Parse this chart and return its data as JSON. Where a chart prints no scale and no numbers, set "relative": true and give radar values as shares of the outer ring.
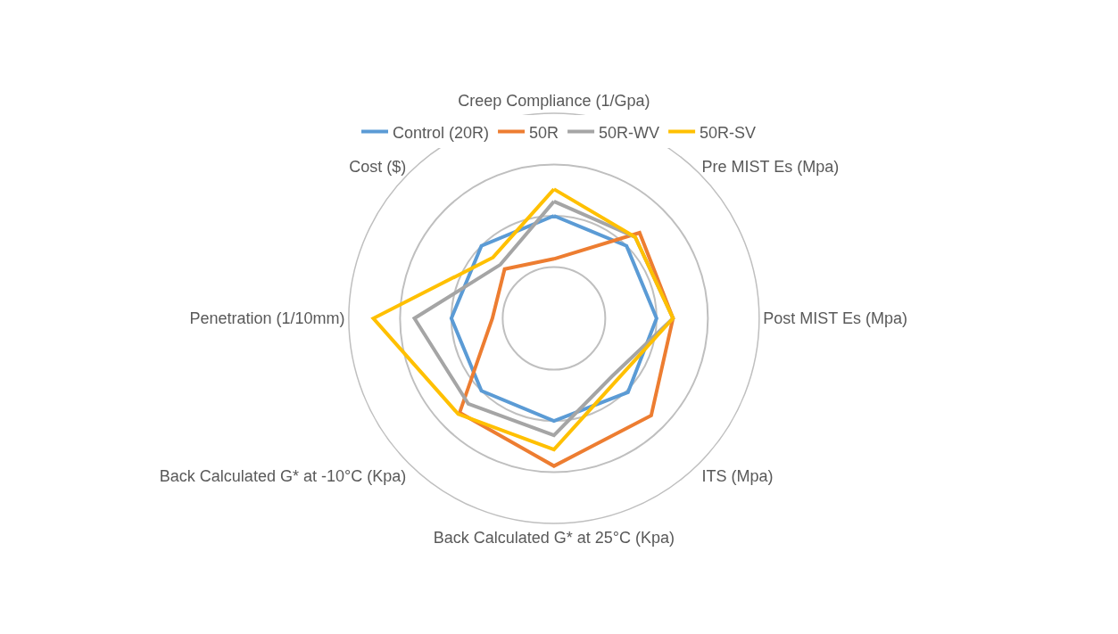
{
  "chart_data": {
    "type": "radar",
    "relative": true,
    "grid": true,
    "legend": "top",
    "marker": "none",
    "line_style": "solid",
    "categories": [
      "Creep Compliance (1/Gpa)",
      "Pre MIST Es (Mpa)",
      "Post MIST Es (Mpa)",
      "ITS (Mpa)",
      "Back Calculated G* at 25°C (Kpa)",
      "Back Calculated G* at -10°C (Kpa)",
      "Penetration (1/10mm)",
      "Cost ($)"
    ],
    "series": [
      {
        "name": "Control (20R)",
        "color": "#5b9bd5",
        "values": [
          0.5,
          0.5,
          0.5,
          0.51,
          0.5,
          0.5,
          0.5,
          0.5
        ]
      },
      {
        "name": "50R",
        "color": "#ed7d31",
        "values": [
          0.29,
          0.59,
          0.58,
          0.67,
          0.72,
          0.65,
          0.3,
          0.34
        ]
      },
      {
        "name": "50R-WV",
        "color": "#a5a5a5",
        "values": [
          0.57,
          0.56,
          0.58,
          0.4,
          0.57,
          0.59,
          0.68,
          0.37
        ]
      },
      {
        "name": "50R-SV",
        "color": "#ffc000",
        "values": [
          0.63,
          0.56,
          0.58,
          0.43,
          0.64,
          0.66,
          0.88,
          0.42
        ]
      }
    ]
  }
}
